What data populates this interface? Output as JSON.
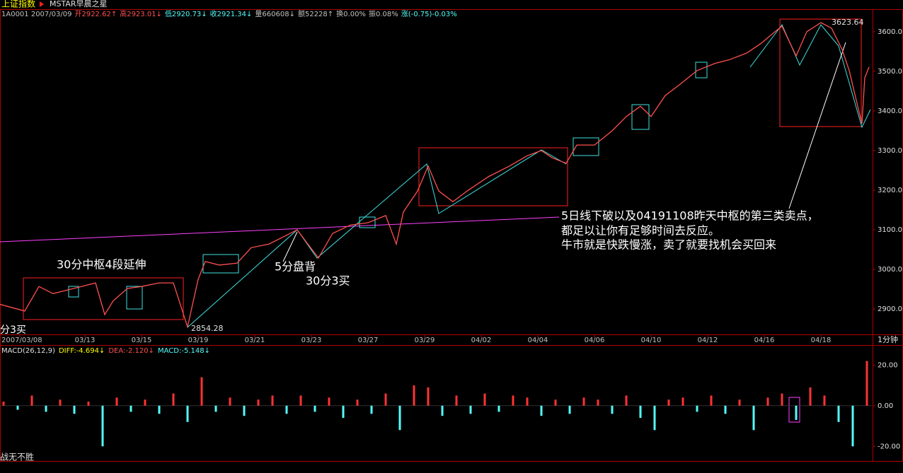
{
  "header": {
    "index_name": "上证指数",
    "formula": "MSTAR早晨之星",
    "items": [
      {
        "text": "1A0001 2007/03/09",
        "color": "#c0c0c0"
      },
      {
        "text": "开2922.62↑",
        "color": "#ff5050"
      },
      {
        "text": "高2923.01↓",
        "color": "#ff5050"
      },
      {
        "text": "低2920.73↓",
        "color": "#54fcfc"
      },
      {
        "text": "收2921.34↓",
        "color": "#54fcfc"
      },
      {
        "text": "量660608↓",
        "color": "#c0c0c0"
      },
      {
        "text": "额52228↑",
        "color": "#c0c0c0"
      },
      {
        "text": "换0.00%",
        "color": "#c0c0c0"
      },
      {
        "text": "振0.08%",
        "color": "#c0c0c0"
      },
      {
        "text": "涨(-0.75)-0.03%",
        "color": "#54fcfc"
      }
    ],
    "period": "1分钟",
    "footer": "战无不胜"
  },
  "chart_data": [
    {
      "type": "line",
      "color": "#ff5050",
      "x": [
        0,
        35,
        55,
        75,
        95,
        115,
        135,
        148,
        160,
        180,
        200,
        225,
        245,
        265,
        280,
        290,
        310,
        335,
        355,
        380,
        400,
        420,
        435,
        450,
        470,
        495,
        520,
        545,
        560,
        570,
        590,
        605,
        620,
        640,
        660,
        690,
        720,
        745,
        765,
        780,
        800,
        815,
        840,
        865,
        885,
        905,
        920,
        940,
        960,
        985,
        1010,
        1030,
        1055,
        1075,
        1095,
        1105,
        1125,
        1140,
        1160,
        1175,
        1190,
        1200,
        1212,
        1218,
        1222,
        1228
      ],
      "values": [
        2912,
        2895,
        2957,
        2939,
        2948,
        2957,
        2966,
        2886,
        2921,
        2952,
        2957,
        2966,
        2966,
        2855,
        2975,
        3020,
        3011,
        3016,
        3055,
        3064,
        3082,
        3100,
        3064,
        3029,
        3091,
        3112,
        3118,
        3136,
        3064,
        3145,
        3198,
        3261,
        3198,
        3171,
        3198,
        3234,
        3261,
        3287,
        3300,
        3282,
        3268,
        3314,
        3314,
        3350,
        3386,
        3412,
        3386,
        3439,
        3466,
        3502,
        3520,
        3529,
        3546,
        3570,
        3600,
        3614,
        3539,
        3600,
        3623,
        3609,
        3555,
        3502,
        3412,
        3368,
        3484,
        3511
      ],
      "xlim": [
        0,
        1232
      ],
      "ylim": [
        2836,
        3648
      ],
      "xticks": [
        {
          "value": 28,
          "label": "2007/03/08"
        },
        {
          "value": 120,
          "label": "03/13"
        },
        {
          "value": 200,
          "label": "03/15"
        },
        {
          "value": 280,
          "label": "03/19"
        },
        {
          "value": 360,
          "label": "03/21"
        },
        {
          "value": 440,
          "label": "03/23"
        },
        {
          "value": 520,
          "label": "03/27"
        },
        {
          "value": 600,
          "label": "03/29"
        },
        {
          "value": 680,
          "label": "04/02"
        },
        {
          "value": 760,
          "label": "04/04"
        },
        {
          "value": 840,
          "label": "04/06"
        },
        {
          "value": 920,
          "label": "04/10"
        },
        {
          "value": 1000,
          "label": "04/12"
        },
        {
          "value": 1080,
          "label": "04/16"
        },
        {
          "value": 1160,
          "label": "04/18"
        }
      ],
      "yticks": [
        {
          "value": 2900,
          "label": "2900.0"
        },
        {
          "value": 3000,
          "label": "3000.0"
        },
        {
          "value": 3100,
          "label": "3100.0"
        },
        {
          "value": 3200,
          "label": "3200.0"
        },
        {
          "value": 3300,
          "label": "3300.0"
        },
        {
          "value": 3400,
          "label": "3400.0"
        },
        {
          "value": 3500,
          "label": "3500.0"
        },
        {
          "value": 3600,
          "label": "3600.0"
        }
      ],
      "annotations": [
        "30分中枢4段延伸",
        "5分盘背",
        "30分3买",
        "5日线下破以及04191108昨天中枢的第三类卖点，",
        "都足以让你有足够时间去反应。",
        "牛市就是快跌慢涨，卖了就要找机会买回来",
        "2854.28",
        "3623.64",
        "分3买"
      ]
    },
    {
      "type": "bar",
      "title": "MACD(26,12,9)",
      "diff_label": "DIFF:-4.694↓",
      "dea_label": "DEA:-2.120↓",
      "macd_label": "MACD:-5.148↓",
      "colors": [
        "#ff3232",
        "#54fcfc"
      ],
      "x": [
        5,
        25,
        45,
        65,
        85,
        105,
        125,
        145,
        165,
        185,
        205,
        225,
        245,
        265,
        285,
        305,
        325,
        345,
        365,
        385,
        405,
        425,
        445,
        465,
        485,
        505,
        525,
        545,
        565,
        585,
        605,
        625,
        645,
        665,
        685,
        705,
        725,
        745,
        765,
        785,
        805,
        825,
        845,
        865,
        885,
        905,
        925,
        945,
        965,
        985,
        1005,
        1025,
        1045,
        1065,
        1085,
        1105,
        1125,
        1145,
        1165,
        1185,
        1205,
        1225
      ],
      "values": [
        2,
        -2,
        5,
        -3,
        3,
        -4,
        2,
        -20,
        4,
        -3,
        3,
        -4,
        6,
        -8,
        14,
        -3,
        4,
        -5,
        3,
        5,
        -4,
        5,
        -3,
        4,
        -6,
        3,
        -4,
        6,
        -12,
        10,
        9,
        -5,
        5,
        -4,
        6,
        -3,
        5,
        4,
        -5,
        3,
        -4,
        4,
        3,
        -4,
        5,
        -6,
        -12,
        3,
        4,
        -3,
        5,
        -4,
        3,
        -12,
        4,
        6,
        -7,
        9,
        5,
        -8,
        -20,
        22
      ],
      "xlim": [
        0,
        1232
      ],
      "ylim": [
        -27.2,
        29.5
      ],
      "yticks": [
        {
          "value": 20,
          "label": "20.00"
        },
        {
          "value": 0,
          "label": "0.00"
        },
        {
          "value": -20,
          "label": "-20.00"
        }
      ]
    }
  ]
}
